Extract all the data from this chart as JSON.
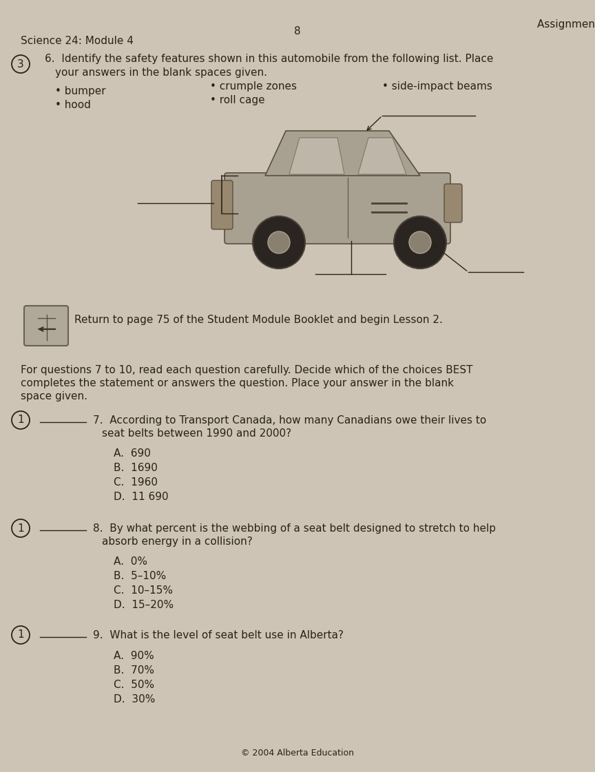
{
  "bg_color": "#cdc4b5",
  "header_page_num": "8",
  "header_right": "Assignment Booklet",
  "header_left": "Science 24: Module 4",
  "q6_circle": "3",
  "return_text": "Return to page 75 of the Student Module Booklet and begin Lesson 2.",
  "for_questions_text_line1": "For questions 7 to 10, read each question carefully. Decide which of the choices BEST",
  "for_questions_text_line2": "completes the statement or answers the question. Place your answer in the blank",
  "for_questions_text_line3": "space given.",
  "q7_line1": "7.  According to Transport Canada, how many Canadians owe their lives to",
  "q7_line2": "seat belts between 1990 and 2000?",
  "q7_choices": [
    "A.  690",
    "B.  1690",
    "C.  1960",
    "D.  11 690"
  ],
  "q8_line1": "8.  By what percent is the webbing of a seat belt designed to stretch to help",
  "q8_line2": "absorb energy in a collision?",
  "q8_choices": [
    "A.  0%",
    "B.  5–10%",
    "C.  10–15%",
    "D.  15–20%"
  ],
  "q9_line1": "9.  What is the level of seat belt use in Alberta?",
  "q9_choices": [
    "A.  90%",
    "B.  70%",
    "C.  50%",
    "D.  30%"
  ],
  "footer": "© 2004 Alberta Education",
  "text_color": "#2a2218",
  "bullet_col1": [
    "bumper",
    "hood"
  ],
  "bullet_col2": [
    "crumple zones",
    "roll cage"
  ],
  "bullet_col3": [
    "side-impact beams"
  ],
  "font_size": 11,
  "font_size_small": 9
}
